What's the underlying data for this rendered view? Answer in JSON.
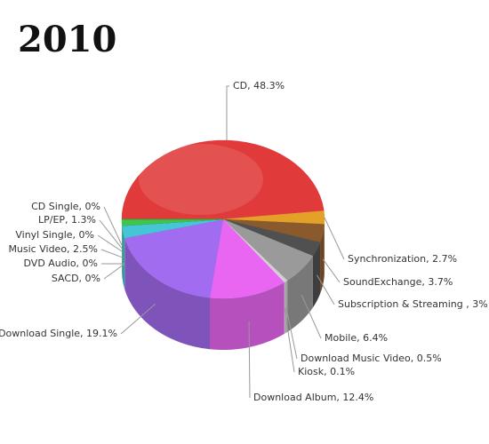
{
  "chart_data": {
    "type": "pie",
    "title": "2010",
    "values": [
      48.3,
      2.7,
      3.7,
      3,
      6.4,
      0.5,
      0.1,
      12.4,
      19.1,
      0,
      0,
      2.5,
      0,
      1.3,
      0
    ],
    "value_labels": [
      "CD, 48.3%",
      "Synchronization, 2.7%",
      "SoundExchange, 3.7%",
      "Subscription & Streaming , 3%",
      "Mobile, 6.4%",
      "Download Music Video, 0.5%",
      "Kiosk, 0.1%",
      "Download Album, 12.4%",
      "Download Single, 19.1%",
      "SACD, 0%",
      "DVD Audio, 0%",
      "Music Video, 2.5%",
      "Vinyl Single, 0%",
      "LP/EP, 1.3%",
      "CD Single, 0%"
    ],
    "colors": [
      "#e03a3a",
      "#e3a12a",
      "#8a5a2c",
      "#505050",
      "#9a9a9a",
      "#cfcfcf",
      "#e0e0e0",
      "#e866f2",
      "#a16cef",
      "#4a7ad0",
      "#c84fbf",
      "#45c6d6",
      "#3a4bd0",
      "#3ec64a",
      "#2f9c3a"
    ]
  }
}
